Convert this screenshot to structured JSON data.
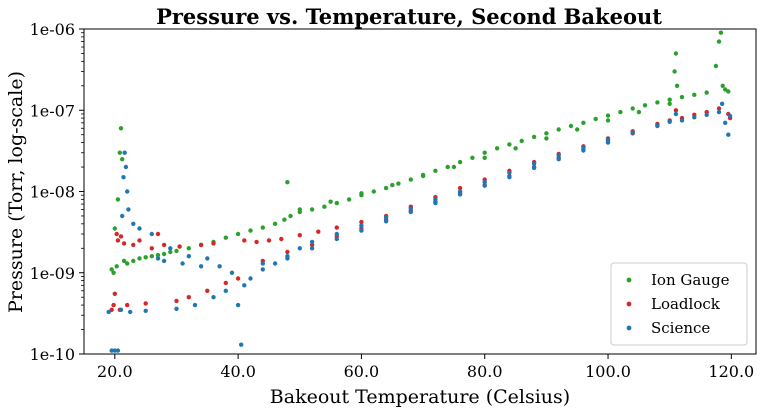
{
  "chart_data": {
    "type": "scatter",
    "title": "Pressure vs. Temperature, Second Bakeout",
    "xlabel": "Bakeout Temperature (Celsius)",
    "ylabel": "Pressure (Torr, log-scale)",
    "xlim": [
      15.0,
      124.0
    ],
    "ylim": [
      1e-10,
      1e-06
    ],
    "yscale": "log",
    "grid": false,
    "legend_position": "bottom-right",
    "xticks": [
      20,
      40,
      60,
      80,
      100,
      120
    ],
    "xtick_labels": [
      "20.0",
      "40.0",
      "60.0",
      "80.0",
      "100.0",
      "120.0"
    ],
    "yticks": [
      1e-10,
      1e-09,
      1e-08,
      1e-07,
      1e-06
    ],
    "ytick_labels": [
      "1e-10",
      "1e-09",
      "1e-08",
      "1e-07",
      "1e-06"
    ],
    "series": [
      {
        "name": "Ion Gauge",
        "color": "#2ca02c",
        "points": [
          [
            19.5,
            1.1e-09
          ],
          [
            19.8,
            1e-09
          ],
          [
            20.0,
            3.5e-09
          ],
          [
            20.3,
            1.2e-09
          ],
          [
            20.5,
            8e-09
          ],
          [
            20.8,
            3e-08
          ],
          [
            21.0,
            6e-08
          ],
          [
            21.2,
            2.5e-08
          ],
          [
            21.5,
            1.4e-09
          ],
          [
            22.0,
            1.3e-09
          ],
          [
            23.0,
            1.4e-09
          ],
          [
            24.0,
            1.5e-09
          ],
          [
            25.0,
            1.55e-09
          ],
          [
            26.0,
            1.6e-09
          ],
          [
            27.0,
            1.65e-09
          ],
          [
            28.0,
            1.7e-09
          ],
          [
            29.0,
            1.8e-09
          ],
          [
            30.0,
            1.85e-09
          ],
          [
            32.0,
            2e-09
          ],
          [
            34.0,
            2.2e-09
          ],
          [
            36.0,
            2.4e-09
          ],
          [
            38.0,
            2.7e-09
          ],
          [
            40.0,
            3e-09
          ],
          [
            42.0,
            3.3e-09
          ],
          [
            44.0,
            3.6e-09
          ],
          [
            46.0,
            4e-09
          ],
          [
            47.5,
            4.5e-09
          ],
          [
            48.0,
            1.3e-08
          ],
          [
            48.5,
            5e-09
          ],
          [
            50.0,
            5.6e-09
          ],
          [
            52.0,
            6e-09
          ],
          [
            54.0,
            6.5e-09
          ],
          [
            56.0,
            7.2e-09
          ],
          [
            58.0,
            8e-09
          ],
          [
            60.0,
            9e-09
          ],
          [
            62.0,
            1e-08
          ],
          [
            64.0,
            1.1e-08
          ],
          [
            66.0,
            1.25e-08
          ],
          [
            68.0,
            1.4e-08
          ],
          [
            70.0,
            1.6e-08
          ],
          [
            72.0,
            1.8e-08
          ],
          [
            74.0,
            2e-08
          ],
          [
            76.0,
            2.3e-08
          ],
          [
            78.0,
            2.6e-08
          ],
          [
            80.0,
            3e-08
          ],
          [
            82.0,
            3.4e-08
          ],
          [
            84.0,
            3.8e-08
          ],
          [
            86.0,
            4.2e-08
          ],
          [
            88.0,
            4.7e-08
          ],
          [
            90.0,
            5.2e-08
          ],
          [
            92.0,
            5.8e-08
          ],
          [
            94.0,
            6.4e-08
          ],
          [
            96.0,
            7e-08
          ],
          [
            98.0,
            7.8e-08
          ],
          [
            100.0,
            8.6e-08
          ],
          [
            102.0,
            9.5e-08
          ],
          [
            104.0,
            1.05e-07
          ],
          [
            106.0,
            1.15e-07
          ],
          [
            108.0,
            1.25e-07
          ],
          [
            110.0,
            1.35e-07
          ],
          [
            110.8,
            3e-07
          ],
          [
            111.0,
            5e-07
          ],
          [
            111.2,
            2e-07
          ],
          [
            112.0,
            1.45e-07
          ],
          [
            114.0,
            1.55e-07
          ],
          [
            116.0,
            1.65e-07
          ],
          [
            117.5,
            3.5e-07
          ],
          [
            118.0,
            7e-07
          ],
          [
            118.3,
            9e-07
          ],
          [
            118.6,
            2e-07
          ],
          [
            119.0,
            1.8e-07
          ],
          [
            119.5,
            1.7e-07
          ],
          [
            110.0,
            1.2e-07
          ],
          [
            105.0,
            9.5e-08
          ],
          [
            100.0,
            7.5e-08
          ],
          [
            95.0,
            5.8e-08
          ],
          [
            90.0,
            4.5e-08
          ],
          [
            85.0,
            3.4e-08
          ],
          [
            80.0,
            2.6e-08
          ],
          [
            75.0,
            2e-08
          ],
          [
            70.0,
            1.55e-08
          ],
          [
            65.0,
            1.2e-08
          ],
          [
            60.0,
            9.5e-09
          ],
          [
            55.0,
            7.5e-09
          ],
          [
            50.0,
            6e-09
          ]
        ]
      },
      {
        "name": "Loadlock",
        "color": "#d62728",
        "points": [
          [
            19.5,
            3.5e-10
          ],
          [
            19.8,
            4e-10
          ],
          [
            20.0,
            5.5e-10
          ],
          [
            20.3,
            3e-09
          ],
          [
            20.5,
            2.5e-09
          ],
          [
            20.8,
            3.5e-10
          ],
          [
            21.0,
            2.8e-09
          ],
          [
            21.5,
            2.3e-09
          ],
          [
            22.0,
            4e-10
          ],
          [
            23.0,
            2.2e-09
          ],
          [
            24.0,
            2.5e-09
          ],
          [
            25.0,
            4.2e-10
          ],
          [
            26.0,
            2e-09
          ],
          [
            27.0,
            3e-09
          ],
          [
            28.0,
            2.2e-09
          ],
          [
            30.0,
            4.5e-10
          ],
          [
            30.5,
            2.1e-09
          ],
          [
            32.0,
            5e-10
          ],
          [
            34.0,
            2.2e-09
          ],
          [
            35.0,
            6e-10
          ],
          [
            36.0,
            2.3e-09
          ],
          [
            38.0,
            7.5e-10
          ],
          [
            40.0,
            8.5e-10
          ],
          [
            41.0,
            2.5e-09
          ],
          [
            43.0,
            2.4e-09
          ],
          [
            45.0,
            2.5e-09
          ],
          [
            47.0,
            2.6e-09
          ],
          [
            50.0,
            2.9e-09
          ],
          [
            53.0,
            3.2e-09
          ],
          [
            56.0,
            3.6e-09
          ],
          [
            60.0,
            4.2e-09
          ],
          [
            64.0,
            5e-09
          ],
          [
            68.0,
            6.5e-09
          ],
          [
            72.0,
            8.5e-09
          ],
          [
            76.0,
            1.1e-08
          ],
          [
            80.0,
            1.4e-08
          ],
          [
            84.0,
            1.8e-08
          ],
          [
            88.0,
            2.3e-08
          ],
          [
            92.0,
            2.9e-08
          ],
          [
            96.0,
            3.6e-08
          ],
          [
            100.0,
            4.5e-08
          ],
          [
            104.0,
            5.5e-08
          ],
          [
            108.0,
            6.8e-08
          ],
          [
            110.0,
            7.5e-08
          ],
          [
            111.0,
            1e-07
          ],
          [
            112.0,
            8e-08
          ],
          [
            114.0,
            8.8e-08
          ],
          [
            116.0,
            9.5e-08
          ],
          [
            118.0,
            1.05e-07
          ],
          [
            119.5,
            9e-08
          ],
          [
            119.8,
            8e-08
          ],
          [
            44.0,
            1.4e-09
          ],
          [
            48.0,
            1.8e-09
          ],
          [
            52.0,
            2.2e-09
          ],
          [
            56.0,
            2.8e-09
          ],
          [
            60.0,
            3.5e-09
          ],
          [
            64.0,
            4.5e-09
          ],
          [
            68.0,
            5.8e-09
          ],
          [
            72.0,
            7.5e-09
          ],
          [
            76.0,
            9.5e-09
          ],
          [
            80.0,
            1.2e-08
          ],
          [
            84.0,
            1.55e-08
          ],
          [
            88.0,
            2e-08
          ],
          [
            92.0,
            2.6e-08
          ],
          [
            96.0,
            3.3e-08
          ],
          [
            100.0,
            4.2e-08
          ],
          [
            104.0,
            5.2e-08
          ],
          [
            108.0,
            6.4e-08
          ]
        ]
      },
      {
        "name": "Science",
        "color": "#1f77b4",
        "points": [
          [
            19.0,
            3.3e-10
          ],
          [
            19.5,
            1.1e-10
          ],
          [
            20.0,
            1.1e-10
          ],
          [
            20.5,
            1.1e-10
          ],
          [
            21.0,
            3.5e-10
          ],
          [
            21.2,
            5e-09
          ],
          [
            21.4,
            1.5e-08
          ],
          [
            21.6,
            3e-08
          ],
          [
            21.8,
            2e-08
          ],
          [
            22.0,
            1e-08
          ],
          [
            22.2,
            6e-09
          ],
          [
            22.5,
            3.3e-10
          ],
          [
            23.0,
            4e-09
          ],
          [
            24.0,
            3.5e-09
          ],
          [
            25.0,
            3.4e-10
          ],
          [
            26.0,
            3e-09
          ],
          [
            27.0,
            1.5e-09
          ],
          [
            28.0,
            1.4e-09
          ],
          [
            29.0,
            2e-09
          ],
          [
            30.0,
            3.6e-10
          ],
          [
            31.0,
            1.3e-09
          ],
          [
            32.0,
            1.6e-09
          ],
          [
            33.0,
            4e-10
          ],
          [
            34.0,
            1.2e-09
          ],
          [
            35.0,
            1.5e-09
          ],
          [
            36.0,
            5e-10
          ],
          [
            37.0,
            1.2e-09
          ],
          [
            38.0,
            6e-10
          ],
          [
            39.0,
            1e-09
          ],
          [
            40.0,
            4e-10
          ],
          [
            40.5,
            1.3e-10
          ],
          [
            41.0,
            7e-10
          ],
          [
            42.0,
            8.5e-10
          ],
          [
            44.0,
            1.1e-09
          ],
          [
            46.0,
            1.3e-09
          ],
          [
            48.0,
            1.6e-09
          ],
          [
            50.0,
            2e-09
          ],
          [
            52.0,
            2.4e-09
          ],
          [
            56.0,
            3e-09
          ],
          [
            60.0,
            3.8e-09
          ],
          [
            64.0,
            4.8e-09
          ],
          [
            68.0,
            6.2e-09
          ],
          [
            72.0,
            8e-09
          ],
          [
            76.0,
            1e-08
          ],
          [
            80.0,
            1.3e-08
          ],
          [
            84.0,
            1.7e-08
          ],
          [
            88.0,
            2.2e-08
          ],
          [
            92.0,
            2.8e-08
          ],
          [
            96.0,
            3.5e-08
          ],
          [
            100.0,
            4.3e-08
          ],
          [
            104.0,
            5.3e-08
          ],
          [
            108.0,
            6.5e-08
          ],
          [
            110.0,
            7.2e-08
          ],
          [
            111.0,
            9e-08
          ],
          [
            112.0,
            7.5e-08
          ],
          [
            114.0,
            8.2e-08
          ],
          [
            116.0,
            8.8e-08
          ],
          [
            118.0,
            9.5e-08
          ],
          [
            118.5,
            1.2e-07
          ],
          [
            119.0,
            7e-08
          ],
          [
            119.5,
            5e-08
          ],
          [
            119.8,
            8.5e-08
          ],
          [
            44.0,
            1.3e-09
          ],
          [
            48.0,
            1.5e-09
          ],
          [
            52.0,
            2e-09
          ],
          [
            56.0,
            2.6e-09
          ],
          [
            60.0,
            3.3e-09
          ],
          [
            64.0,
            4.3e-09
          ],
          [
            68.0,
            5.6e-09
          ],
          [
            72.0,
            7.2e-09
          ],
          [
            76.0,
            9.2e-09
          ],
          [
            80.0,
            1.18e-08
          ],
          [
            84.0,
            1.5e-08
          ],
          [
            88.0,
            1.95e-08
          ],
          [
            92.0,
            2.5e-08
          ],
          [
            96.0,
            3.2e-08
          ],
          [
            100.0,
            4e-08
          ]
        ]
      }
    ]
  }
}
